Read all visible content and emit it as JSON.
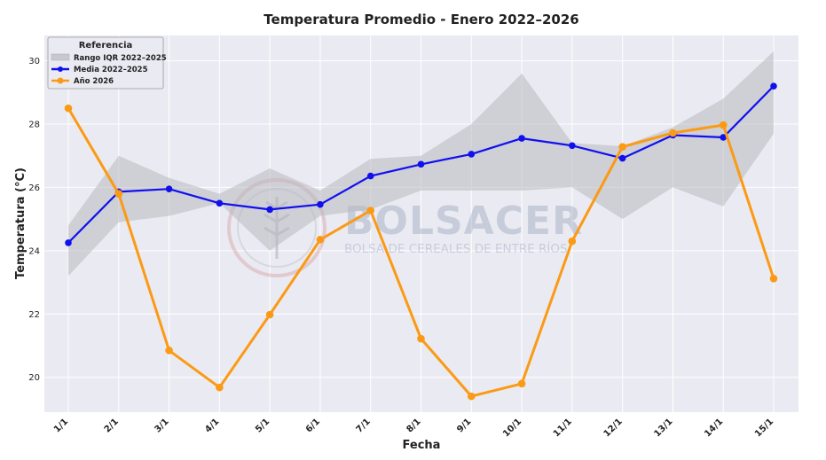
{
  "chart_data": {
    "type": "line",
    "title": "Temperatura Promedio - Enero 2022–2026",
    "xlabel": "Fecha",
    "ylabel": "Temperatura (°C)",
    "categories": [
      "1/1",
      "2/1",
      "3/1",
      "4/1",
      "5/1",
      "6/1",
      "7/1",
      "8/1",
      "9/1",
      "10/1",
      "11/1",
      "12/1",
      "13/1",
      "14/1",
      "15/1"
    ],
    "ylim": [
      18.9,
      30.8
    ],
    "yticks": [
      20,
      22,
      24,
      26,
      28,
      30
    ],
    "grid": true,
    "legend": {
      "title": "Referencia",
      "placement": "top-left",
      "items": [
        "Rango IQR 2022–2025",
        "Media 2022–2025",
        "Año 2026"
      ]
    },
    "band": {
      "name": "Rango IQR 2022–2025",
      "color": "#b8b8c0",
      "lower": [
        23.2,
        24.9,
        25.1,
        25.5,
        24.0,
        25.1,
        25.3,
        25.9,
        25.9,
        25.9,
        26.0,
        25.0,
        26.0,
        25.4,
        27.7
      ],
      "upper": [
        24.8,
        27.0,
        26.3,
        25.8,
        26.6,
        25.9,
        26.9,
        27.0,
        28.0,
        29.6,
        27.4,
        27.3,
        27.9,
        28.8,
        30.3
      ]
    },
    "series": [
      {
        "name": "Media 2022–2025",
        "color": "#1010ee",
        "values": [
          24.25,
          25.86,
          25.95,
          25.5,
          25.3,
          25.46,
          26.36,
          26.73,
          27.05,
          27.55,
          27.32,
          26.92,
          27.65,
          27.58,
          29.2
        ]
      },
      {
        "name": "Año 2026",
        "color": "#fb9a14",
        "values": [
          28.5,
          25.8,
          20.85,
          19.68,
          21.98,
          24.35,
          25.27,
          21.22,
          19.4,
          19.8,
          24.3,
          27.28,
          27.72,
          27.97,
          23.12
        ]
      }
    ]
  },
  "watermark": {
    "brand": "BOLSACER",
    "subtitle": "BOLSA DE CEREALES DE ENTRE RÍOS"
  }
}
